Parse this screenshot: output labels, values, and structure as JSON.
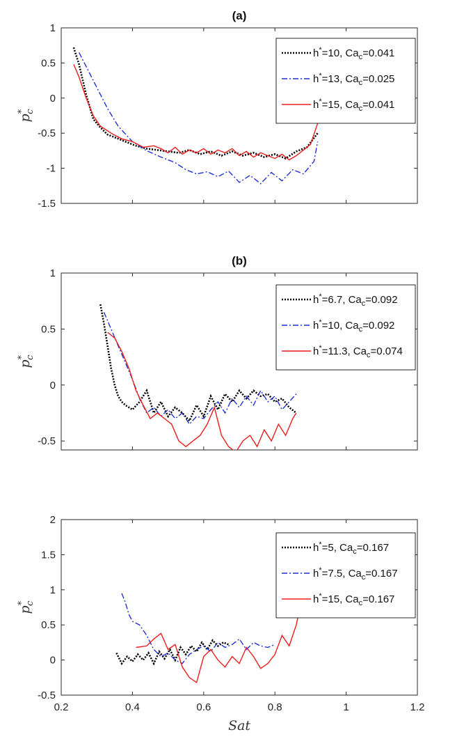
{
  "chart_data": [
    {
      "type": "line",
      "title": "(a)",
      "xlabel": "",
      "ylabel": "p*c",
      "xlim": [
        0.2,
        1.2
      ],
      "ylim": [
        -1.5,
        1
      ],
      "yticks": [
        "1",
        "0.5",
        "0",
        "-0.5",
        "-1",
        "-1.5"
      ],
      "yticks_values": [
        1,
        0.5,
        0,
        -0.5,
        -1,
        -1.5
      ],
      "xticks_values": [
        0.2,
        0.4,
        0.6,
        0.8,
        1.0,
        1.2
      ],
      "show_xtick_labels": false,
      "legend_position": "top-right",
      "series": [
        {
          "name": "h*=10, Cac=0.041",
          "color": "#000000",
          "dash": "dotted",
          "x": [
            0.235,
            0.25,
            0.27,
            0.29,
            0.31,
            0.33,
            0.35,
            0.38,
            0.41,
            0.44,
            0.47,
            0.5,
            0.53,
            0.56,
            0.59,
            0.62,
            0.65,
            0.68,
            0.71,
            0.74,
            0.77,
            0.8,
            0.83,
            0.86,
            0.89,
            0.92
          ],
          "y": [
            0.72,
            0.48,
            0.05,
            -0.3,
            -0.42,
            -0.52,
            -0.56,
            -0.62,
            -0.68,
            -0.72,
            -0.74,
            -0.76,
            -0.78,
            -0.74,
            -0.8,
            -0.76,
            -0.82,
            -0.76,
            -0.82,
            -0.78,
            -0.84,
            -0.8,
            -0.86,
            -0.76,
            -0.7,
            -0.5
          ]
        },
        {
          "name": "h*=13, Cac=0.025",
          "color": "#1f2fd6",
          "dash": "dashdot",
          "x": [
            0.25,
            0.27,
            0.3,
            0.33,
            0.36,
            0.4,
            0.44,
            0.48,
            0.52,
            0.55,
            0.58,
            0.61,
            0.64,
            0.67,
            0.7,
            0.73,
            0.76,
            0.79,
            0.82,
            0.85,
            0.88,
            0.91,
            0.92
          ],
          "y": [
            0.65,
            0.45,
            0.15,
            -0.15,
            -0.4,
            -0.62,
            -0.75,
            -0.84,
            -0.92,
            -1.02,
            -1.08,
            -1.05,
            -1.12,
            -1.04,
            -1.2,
            -1.1,
            -1.22,
            -1.06,
            -1.18,
            -1.02,
            -1.08,
            -0.9,
            -0.62
          ]
        },
        {
          "name": "h*=15, Cac=0.041",
          "color": "#ef1c1c",
          "dash": "solid",
          "x": [
            0.235,
            0.25,
            0.27,
            0.29,
            0.31,
            0.34,
            0.37,
            0.4,
            0.43,
            0.46,
            0.48,
            0.5,
            0.52,
            0.54,
            0.56,
            0.58,
            0.6,
            0.62,
            0.64,
            0.66,
            0.68,
            0.7,
            0.72,
            0.74,
            0.76,
            0.78,
            0.8,
            0.82,
            0.84,
            0.86,
            0.88,
            0.9,
            0.92
          ],
          "y": [
            0.48,
            0.3,
            0.0,
            -0.25,
            -0.4,
            -0.5,
            -0.58,
            -0.62,
            -0.7,
            -0.68,
            -0.72,
            -0.78,
            -0.7,
            -0.8,
            -0.74,
            -0.78,
            -0.72,
            -0.8,
            -0.74,
            -0.78,
            -0.72,
            -0.82,
            -0.76,
            -0.84,
            -0.78,
            -0.82,
            -0.86,
            -0.8,
            -0.88,
            -0.82,
            -0.74,
            -0.66,
            -0.36
          ]
        }
      ]
    },
    {
      "type": "line",
      "title": "(b)",
      "xlabel": "",
      "ylabel": "p*c",
      "xlim": [
        0.2,
        1.2
      ],
      "ylim": [
        -0.58,
        1
      ],
      "yticks": [
        "1",
        "0.5",
        "0",
        "-0.5"
      ],
      "yticks_values": [
        1,
        0.5,
        0,
        -0.5
      ],
      "xticks_values": [
        0.2,
        0.4,
        0.6,
        0.8,
        1.0,
        1.2
      ],
      "show_xtick_labels": false,
      "legend_position": "top-right",
      "series": [
        {
          "name": "h*=6.7, Cac=0.092",
          "color": "#000000",
          "dash": "dotted",
          "x": [
            0.31,
            0.32,
            0.33,
            0.34,
            0.35,
            0.36,
            0.37,
            0.38,
            0.39,
            0.4,
            0.42,
            0.44,
            0.46,
            0.48,
            0.5,
            0.52,
            0.54,
            0.56,
            0.58,
            0.6,
            0.62,
            0.64,
            0.66,
            0.68,
            0.7,
            0.72,
            0.74,
            0.76,
            0.78,
            0.8,
            0.82,
            0.84,
            0.86
          ],
          "y": [
            0.72,
            0.55,
            0.35,
            0.15,
            0.0,
            -0.1,
            -0.15,
            -0.18,
            -0.2,
            -0.22,
            -0.15,
            -0.05,
            -0.25,
            -0.15,
            -0.28,
            -0.2,
            -0.25,
            -0.32,
            -0.18,
            -0.28,
            -0.1,
            -0.22,
            -0.08,
            -0.15,
            -0.05,
            -0.12,
            -0.05,
            -0.1,
            -0.08,
            -0.15,
            -0.12,
            -0.2,
            -0.25
          ]
        },
        {
          "name": "h*=10, Cac=0.092",
          "color": "#1f2fd6",
          "dash": "dashdot",
          "x": [
            0.32,
            0.34,
            0.36,
            0.38,
            0.4,
            0.42,
            0.44,
            0.46,
            0.48,
            0.5,
            0.52,
            0.54,
            0.56,
            0.58,
            0.6,
            0.62,
            0.64,
            0.66,
            0.68,
            0.7,
            0.72,
            0.74,
            0.76,
            0.78,
            0.8,
            0.82,
            0.84,
            0.86
          ],
          "y": [
            0.65,
            0.5,
            0.35,
            0.2,
            0.05,
            -0.12,
            -0.25,
            -0.2,
            -0.28,
            -0.22,
            -0.3,
            -0.25,
            -0.35,
            -0.28,
            -0.3,
            -0.22,
            -0.15,
            -0.25,
            -0.12,
            -0.2,
            -0.1,
            -0.18,
            -0.05,
            -0.15,
            -0.1,
            -0.22,
            -0.15,
            -0.08
          ]
        },
        {
          "name": "h*=11.3, Cac=0.074",
          "color": "#ef1c1c",
          "dash": "solid",
          "x": [
            0.33,
            0.35,
            0.37,
            0.39,
            0.41,
            0.43,
            0.45,
            0.47,
            0.49,
            0.51,
            0.53,
            0.55,
            0.57,
            0.59,
            0.61,
            0.63,
            0.65,
            0.67,
            0.69,
            0.71,
            0.73,
            0.75,
            0.77,
            0.79,
            0.81,
            0.83,
            0.85,
            0.86
          ],
          "y": [
            0.47,
            0.42,
            0.3,
            0.15,
            -0.05,
            -0.18,
            -0.3,
            -0.25,
            -0.3,
            -0.35,
            -0.5,
            -0.55,
            -0.5,
            -0.45,
            -0.35,
            -0.2,
            -0.45,
            -0.55,
            -0.6,
            -0.5,
            -0.45,
            -0.55,
            -0.4,
            -0.5,
            -0.35,
            -0.45,
            -0.3,
            -0.25
          ]
        }
      ]
    },
    {
      "type": "line",
      "title": "",
      "xlabel": "Sat",
      "ylabel": "p*c",
      "xlim": [
        0.2,
        1.2
      ],
      "ylim": [
        -0.5,
        2
      ],
      "yticks": [
        "2",
        "1.5",
        "1",
        "0.5",
        "0",
        "-0.5"
      ],
      "yticks_values": [
        2,
        1.5,
        1,
        0.5,
        0,
        -0.5
      ],
      "xticks": [
        "0.2",
        "0.4",
        "0.6",
        "0.8",
        "1",
        "1.2"
      ],
      "xticks_values": [
        0.2,
        0.4,
        0.6,
        0.8,
        1.0,
        1.2
      ],
      "show_xtick_labels": true,
      "legend_position": "top-right",
      "series": [
        {
          "name": "h*=5, Cac=0.167",
          "color": "#000000",
          "dash": "dotted",
          "x": [
            0.355,
            0.37,
            0.385,
            0.4,
            0.415,
            0.43,
            0.445,
            0.46,
            0.475,
            0.49,
            0.505,
            0.52,
            0.535,
            0.55,
            0.565,
            0.58,
            0.595,
            0.61,
            0.625,
            0.64,
            0.655,
            0.67
          ],
          "y": [
            0.1,
            -0.05,
            0.05,
            -0.02,
            0.08,
            0.0,
            0.1,
            -0.05,
            0.12,
            0.02,
            0.15,
            0.0,
            0.18,
            0.08,
            0.2,
            0.12,
            0.25,
            0.15,
            0.28,
            0.2,
            0.25,
            0.22
          ]
        },
        {
          "name": "h*=7.5, Cac=0.167",
          "color": "#1f2fd6",
          "dash": "dashdot",
          "x": [
            0.37,
            0.38,
            0.39,
            0.4,
            0.42,
            0.44,
            0.46,
            0.48,
            0.5,
            0.52,
            0.54,
            0.56,
            0.58,
            0.6,
            0.62,
            0.64,
            0.66,
            0.68,
            0.7,
            0.72,
            0.74,
            0.76,
            0.78,
            0.8
          ],
          "y": [
            0.95,
            0.82,
            0.65,
            0.55,
            0.5,
            0.35,
            0.15,
            0.05,
            0.1,
            0.0,
            -0.05,
            0.08,
            0.15,
            0.2,
            0.12,
            0.25,
            0.18,
            0.22,
            0.3,
            0.15,
            0.25,
            0.2,
            0.18,
            0.22
          ]
        },
        {
          "name": "h*=15, Cac=0.167",
          "color": "#ef1c1c",
          "dash": "solid",
          "x": [
            0.41,
            0.44,
            0.46,
            0.48,
            0.5,
            0.52,
            0.54,
            0.56,
            0.58,
            0.6,
            0.62,
            0.64,
            0.66,
            0.68,
            0.7,
            0.72,
            0.74,
            0.76,
            0.78,
            0.8,
            0.82,
            0.84,
            0.86,
            0.865
          ],
          "y": [
            0.18,
            0.2,
            0.3,
            0.38,
            0.15,
            0.22,
            -0.1,
            -0.25,
            -0.32,
            0.05,
            0.15,
            0.0,
            -0.1,
            0.05,
            -0.05,
            0.18,
            0.05,
            -0.12,
            -0.05,
            0.08,
            0.35,
            0.2,
            0.5,
            0.62
          ]
        }
      ]
    }
  ]
}
